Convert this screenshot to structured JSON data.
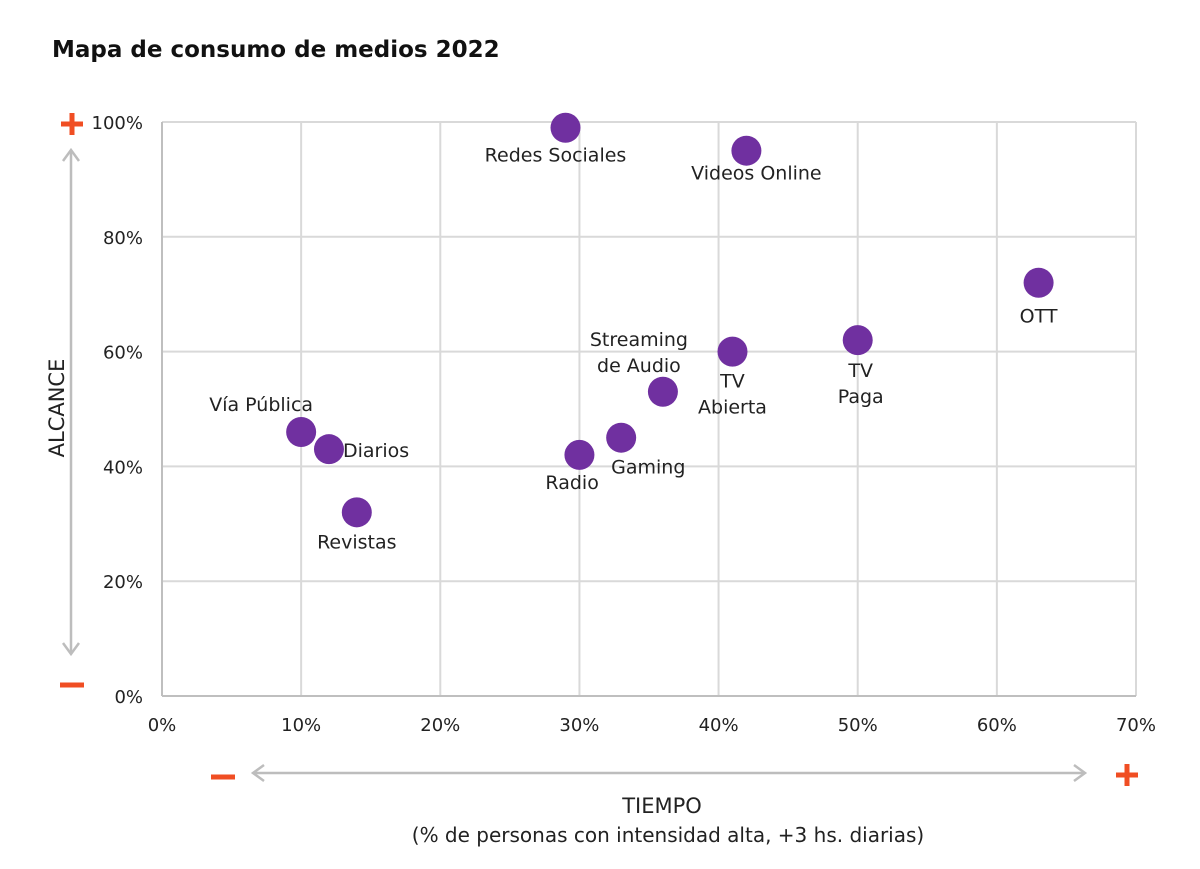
{
  "chart_data": {
    "type": "scatter",
    "title": "Mapa de consumo de medios 2022",
    "xlabel": "TIEMPO",
    "xlabel_sub": "(% de personas con intensidad alta, +3 hs. diarias)",
    "ylabel": "ALCANCE",
    "xlim": [
      0,
      70
    ],
    "ylim": [
      0,
      100
    ],
    "x_ticks": [
      0,
      10,
      20,
      30,
      40,
      50,
      60,
      70
    ],
    "y_ticks": [
      0,
      20,
      40,
      60,
      80,
      100
    ],
    "x_tick_labels": [
      "0%",
      "10%",
      "20%",
      "30%",
      "40%",
      "50%",
      "60%",
      "70%"
    ],
    "y_tick_labels": [
      "0%",
      "20%",
      "40%",
      "60%",
      "80%",
      "100%"
    ],
    "grid": true,
    "point_color": "#7030a0",
    "sign_color": "#f04e23",
    "arrow_color": "#bdbdbd",
    "axis_high_sign": "+",
    "axis_low_sign": "−",
    "points": [
      {
        "name": "Redes Sociales",
        "lines": [
          "Redes Sociales"
        ],
        "x": 29,
        "y": 99
      },
      {
        "name": "Videos Online",
        "lines": [
          "Videos Online"
        ],
        "x": 42,
        "y": 95
      },
      {
        "name": "OTT",
        "lines": [
          "OTT"
        ],
        "x": 63,
        "y": 72
      },
      {
        "name": "TV Paga",
        "lines": [
          "TV",
          "Paga"
        ],
        "x": 50,
        "y": 62
      },
      {
        "name": "TV Abierta",
        "lines": [
          "TV",
          "Abierta"
        ],
        "x": 41,
        "y": 60
      },
      {
        "name": "Streaming de Audio",
        "lines": [
          "Streaming",
          "de Audio"
        ],
        "x": 36,
        "y": 53
      },
      {
        "name": "Gaming",
        "lines": [
          "Gaming"
        ],
        "x": 33,
        "y": 45
      },
      {
        "name": "Radio",
        "lines": [
          "Radio"
        ],
        "x": 30,
        "y": 42
      },
      {
        "name": "Vía Pública",
        "lines": [
          "Vía Pública"
        ],
        "x": 10,
        "y": 46
      },
      {
        "name": "Diarios",
        "lines": [
          "Diarios"
        ],
        "x": 12,
        "y": 43
      },
      {
        "name": "Revistas",
        "lines": [
          "Revistas"
        ],
        "x": 14,
        "y": 32
      }
    ]
  }
}
